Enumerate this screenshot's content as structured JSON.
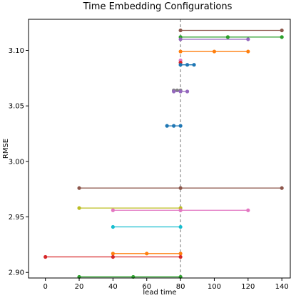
{
  "chart_data": {
    "type": "scatter",
    "title": "Time Embedding Configurations",
    "xlabel": "lead time",
    "ylabel": "RMSE",
    "xlim": [
      -10,
      145
    ],
    "ylim": [
      2.895,
      3.128
    ],
    "xticks": [
      0,
      20,
      40,
      60,
      80,
      100,
      120,
      140
    ],
    "yticks": [
      2.9,
      2.95,
      3.0,
      3.05,
      3.1
    ],
    "ytick_labels": [
      "2.90",
      "2.95",
      "3.00",
      "3.05",
      "3.10"
    ],
    "reference_line": {
      "x": 80,
      "style": "dashed",
      "color": "#777777"
    },
    "grid": false,
    "legend": "none",
    "series": [
      {
        "color": "#8c564b",
        "x": [
          80,
          140
        ],
        "y": [
          3.118,
          3.118
        ]
      },
      {
        "color": "#2ca02c",
        "x": [
          80,
          108,
          140
        ],
        "y": [
          3.112,
          3.112,
          3.112
        ]
      },
      {
        "color": "#9467bd",
        "x": [
          80,
          120
        ],
        "y": [
          3.11,
          3.11
        ]
      },
      {
        "color": "#ff7f0e",
        "x": [
          80,
          100,
          120
        ],
        "y": [
          3.099,
          3.099,
          3.099
        ]
      },
      {
        "color": "#e377c2",
        "x": [
          80
        ],
        "y": [
          3.091
        ]
      },
      {
        "color": "#d62728",
        "x": [
          80
        ],
        "y": [
          3.089
        ]
      },
      {
        "color": "#1f77b4",
        "x": [
          80,
          84,
          88
        ],
        "y": [
          3.087,
          3.087,
          3.087
        ]
      },
      {
        "color": "#7f7f7f",
        "x": [
          76,
          78,
          80
        ],
        "y": [
          3.064,
          3.064,
          3.064
        ]
      },
      {
        "color": "#9467bd",
        "x": [
          76,
          80,
          84
        ],
        "y": [
          3.063,
          3.063,
          3.063
        ]
      },
      {
        "color": "#1f77b4",
        "x": [
          72,
          76,
          80
        ],
        "y": [
          3.032,
          3.032,
          3.032
        ]
      },
      {
        "color": "#8c564b",
        "x": [
          20,
          80,
          140
        ],
        "y": [
          2.976,
          2.976,
          2.976
        ]
      },
      {
        "color": "#bcbd22",
        "x": [
          20,
          80
        ],
        "y": [
          2.958,
          2.958
        ]
      },
      {
        "color": "#e377c2",
        "x": [
          40,
          80,
          120
        ],
        "y": [
          2.956,
          2.956,
          2.956
        ]
      },
      {
        "color": "#17becf",
        "x": [
          40,
          80
        ],
        "y": [
          2.941,
          2.941
        ]
      },
      {
        "color": "#ff7f0e",
        "x": [
          40,
          60,
          80
        ],
        "y": [
          2.917,
          2.917,
          2.917
        ]
      },
      {
        "color": "#d62728",
        "x": [
          0,
          40,
          80
        ],
        "y": [
          2.914,
          2.914,
          2.914
        ]
      },
      {
        "color": "#2ca02c",
        "x": [
          20,
          52,
          80
        ],
        "y": [
          2.896,
          2.896,
          2.896
        ]
      }
    ]
  }
}
